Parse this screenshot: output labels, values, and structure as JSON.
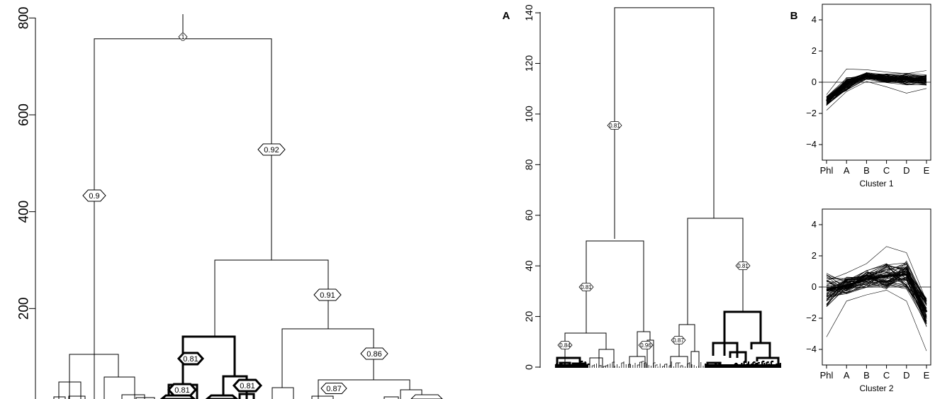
{
  "chart_data": [
    {
      "id": "left-dendrogram",
      "type": "dendrogram",
      "ylim": [
        0,
        800
      ],
      "yticks": [
        "200",
        "400",
        "600",
        "800"
      ],
      "root_height": 757,
      "merges": [
        {
          "height": 757,
          "pvalue": "1"
        },
        {
          "height": 757,
          "pvalue": "0.9"
        },
        {
          "height": 757,
          "pvalue": "0.92"
        },
        {
          "height": 300,
          "pvalue": "0.91"
        },
        {
          "height": 158,
          "pvalue": "0.86"
        },
        {
          "height": 140,
          "pvalue": "0.81"
        },
        {
          "height": 54,
          "pvalue": "0.87"
        },
        {
          "height": 40,
          "pvalue": "0.81"
        },
        {
          "height": 40,
          "pvalue": "0.81"
        }
      ]
    },
    {
      "id": "panel-a-dendrogram",
      "panel": "A",
      "type": "dendrogram",
      "ylim": [
        0,
        140
      ],
      "yticks": [
        "0",
        "20",
        "40",
        "60",
        "80",
        "100",
        "120",
        "140"
      ],
      "root_height": 142,
      "merges": [
        {
          "height": 142,
          "pvalue": "0.81"
        },
        {
          "height": 59,
          "pvalue": "0.81"
        },
        {
          "height": 50,
          "pvalue": "0.81"
        },
        {
          "height": 21,
          "pvalue": ""
        },
        {
          "height": 17,
          "pvalue": "0.87"
        },
        {
          "height": 13.5,
          "pvalue": "0.84"
        },
        {
          "height": 14,
          "pvalue": "0.96"
        }
      ]
    },
    {
      "id": "cluster-1",
      "panel": "B",
      "type": "line",
      "title": "Cluster 1",
      "categories": [
        "Phl",
        "A",
        "B",
        "C",
        "D",
        "E"
      ],
      "ylim": [
        -5,
        5
      ],
      "yticks": [
        "4",
        "2",
        "0",
        "−2",
        "−4"
      ],
      "band": {
        "min": [
          -1.8,
          -0.6,
          0.05,
          -0.3,
          -0.7,
          -0.4
        ],
        "mean": [
          -1.2,
          -0.1,
          0.4,
          0.25,
          0.2,
          0.15
        ],
        "max": [
          -0.8,
          0.85,
          0.8,
          0.65,
          0.55,
          0.75
        ]
      }
    },
    {
      "id": "cluster-2",
      "panel": "B",
      "type": "line",
      "title": "Cluster 2",
      "categories": [
        "Phl",
        "A",
        "B",
        "C",
        "D",
        "E"
      ],
      "ylim": [
        -5,
        5
      ],
      "yticks": [
        "4",
        "2",
        "0",
        "−2",
        "−4"
      ],
      "band": {
        "min": [
          -3.2,
          -0.9,
          -0.5,
          -0.2,
          -0.9,
          -4.1
        ],
        "mean": [
          -0.2,
          0.1,
          0.5,
          0.7,
          0.8,
          -1.6
        ],
        "max": [
          0.4,
          0.9,
          1.5,
          2.6,
          2.2,
          -0.9
        ]
      }
    }
  ]
}
